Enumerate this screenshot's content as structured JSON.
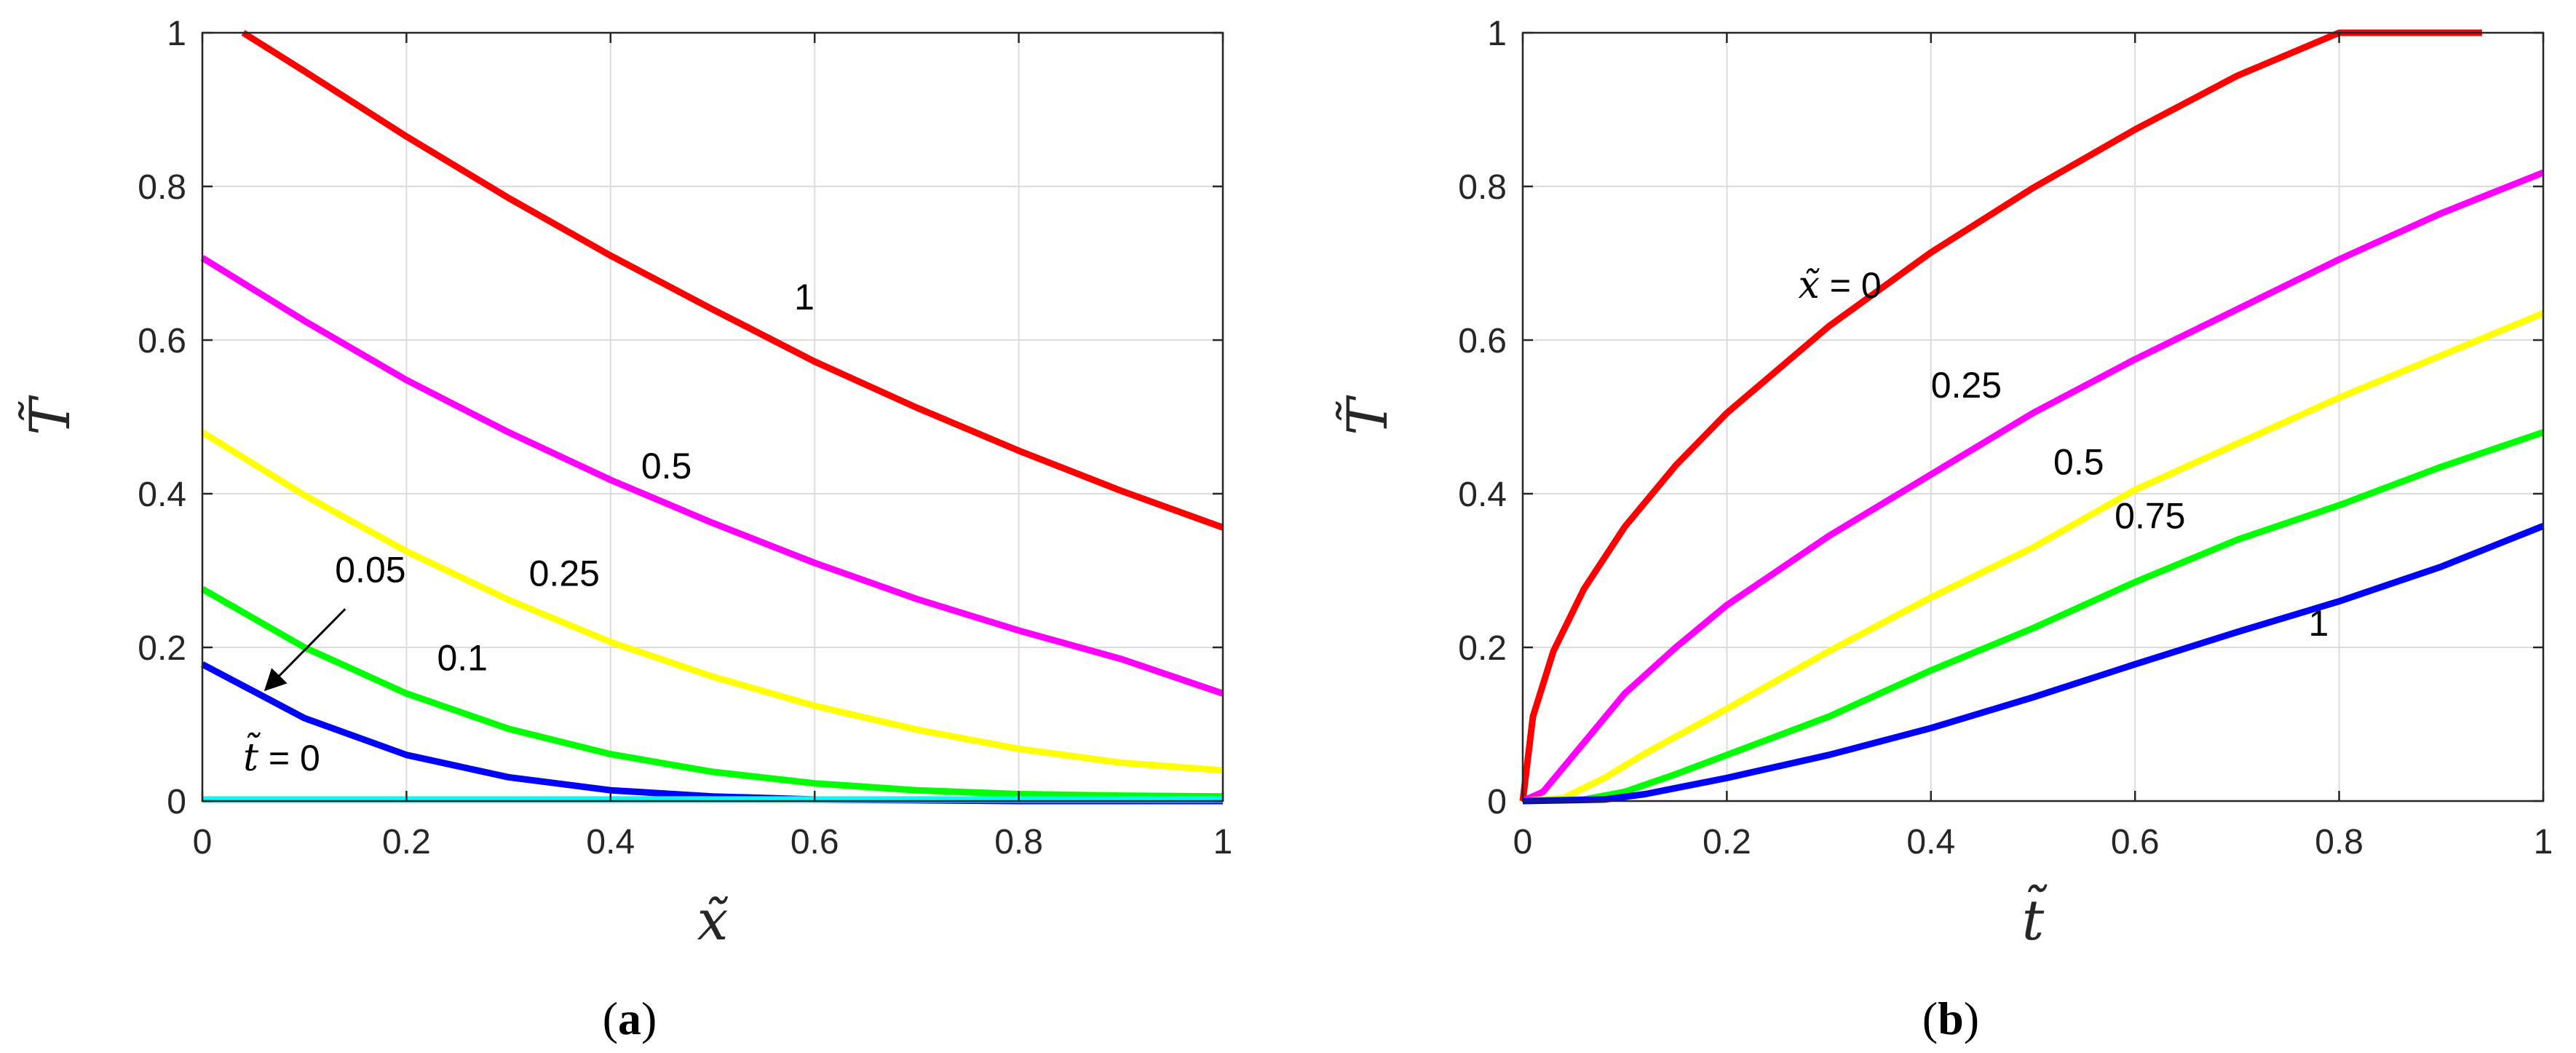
{
  "chart_data": [
    {
      "id": "a",
      "type": "line",
      "panel_label": "a",
      "xlabel": "x̃",
      "ylabel": "T̃",
      "xlim": [
        0,
        1
      ],
      "ylim": [
        0,
        1
      ],
      "xticks": [
        "0",
        "0.2",
        "0.4",
        "0.6",
        "0.8",
        "1"
      ],
      "yticks": [
        "0",
        "0.2",
        "0.4",
        "0.6",
        "0.8",
        "1"
      ],
      "grid": true,
      "series": [
        {
          "name": "1",
          "color": "#ff0000",
          "x": [
            0.04,
            0.1,
            0.2,
            0.3,
            0.4,
            0.5,
            0.6,
            0.7,
            0.8,
            0.9,
            1.0
          ],
          "y": [
            1.0,
            0.95,
            0.865,
            0.785,
            0.71,
            0.64,
            0.572,
            0.512,
            0.456,
            0.404,
            0.356
          ]
        },
        {
          "name": "0.5",
          "color": "#ff00ff",
          "x": [
            0,
            0.1,
            0.2,
            0.3,
            0.4,
            0.5,
            0.6,
            0.7,
            0.8,
            0.9,
            1.0
          ],
          "y": [
            0.707,
            0.625,
            0.548,
            0.48,
            0.418,
            0.362,
            0.31,
            0.263,
            0.222,
            0.185,
            0.14
          ]
        },
        {
          "name": "0.25",
          "color": "#ffff00",
          "x": [
            0,
            0.1,
            0.2,
            0.3,
            0.4,
            0.5,
            0.6,
            0.7,
            0.8,
            0.9,
            1.0
          ],
          "y": [
            0.48,
            0.398,
            0.325,
            0.262,
            0.207,
            0.162,
            0.124,
            0.093,
            0.068,
            0.05,
            0.04
          ]
        },
        {
          "name": "0.1",
          "color": "#00ff00",
          "x": [
            0,
            0.1,
            0.2,
            0.3,
            0.4,
            0.5,
            0.6,
            0.7,
            0.8,
            0.9,
            1.0
          ],
          "y": [
            0.276,
            0.2,
            0.14,
            0.094,
            0.061,
            0.038,
            0.023,
            0.014,
            0.009,
            0.007,
            0.006
          ]
        },
        {
          "name": "0.05",
          "color": "#0000ff",
          "x": [
            0,
            0.1,
            0.2,
            0.3,
            0.4,
            0.5,
            0.6,
            0.7,
            0.8,
            0.9,
            1.0
          ],
          "y": [
            0.178,
            0.108,
            0.06,
            0.031,
            0.014,
            0.006,
            0.002,
            0.001,
            0.0,
            0.0,
            0.0
          ]
        },
        {
          "name": "0",
          "color": "#00ffff",
          "x": [
            0,
            1.0
          ],
          "y": [
            0.002,
            0.002
          ]
        }
      ],
      "annotations": [
        {
          "text": "1",
          "x": 0.58,
          "y": 0.64
        },
        {
          "text": "0.5",
          "x": 0.43,
          "y": 0.42
        },
        {
          "text": "0.25",
          "x": 0.32,
          "y": 0.28
        },
        {
          "text": "0.1",
          "x": 0.23,
          "y": 0.17
        },
        {
          "text": "0.05",
          "x": 0.13,
          "y": 0.285
        },
        {
          "text": "= 0",
          "x": 0.04,
          "y": 0.04,
          "prefix": "t̃"
        }
      ],
      "arrow": {
        "from": [
          0.14,
          0.25
        ],
        "to": [
          0.062,
          0.145
        ]
      }
    },
    {
      "id": "b",
      "type": "line",
      "panel_label": "b",
      "xlabel": "t̃",
      "ylabel": "T̃",
      "xlim": [
        0,
        1
      ],
      "ylim": [
        0,
        1
      ],
      "xticks": [
        "0",
        "0.2",
        "0.4",
        "0.6",
        "0.8",
        "1"
      ],
      "yticks": [
        "0",
        "0.2",
        "0.4",
        "0.6",
        "0.8",
        "1"
      ],
      "grid": true,
      "series": [
        {
          "name": "0",
          "color": "#ff0000",
          "x": [
            0,
            0.01,
            0.03,
            0.06,
            0.1,
            0.15,
            0.2,
            0.3,
            0.4,
            0.5,
            0.6,
            0.7,
            0.8,
            0.9,
            0.94
          ],
          "y": [
            0,
            0.11,
            0.195,
            0.276,
            0.357,
            0.437,
            0.505,
            0.618,
            0.714,
            0.798,
            0.874,
            0.944,
            1.0,
            1.0,
            1.0
          ]
        },
        {
          "name": "0.25",
          "color": "#ff00ff",
          "x": [
            0,
            0.02,
            0.05,
            0.1,
            0.15,
            0.2,
            0.3,
            0.4,
            0.5,
            0.6,
            0.7,
            0.8,
            0.9,
            1.0
          ],
          "y": [
            0,
            0.012,
            0.06,
            0.14,
            0.2,
            0.255,
            0.345,
            0.425,
            0.505,
            0.575,
            0.64,
            0.705,
            0.765,
            0.818
          ]
        },
        {
          "name": "0.5",
          "color": "#ffff00",
          "x": [
            0,
            0.04,
            0.08,
            0.12,
            0.2,
            0.3,
            0.4,
            0.5,
            0.6,
            0.7,
            0.8,
            0.9,
            1.0
          ],
          "y": [
            0,
            0.004,
            0.03,
            0.062,
            0.12,
            0.195,
            0.265,
            0.33,
            0.405,
            0.465,
            0.525,
            0.58,
            0.635
          ]
        },
        {
          "name": "0.75",
          "color": "#00ff00",
          "x": [
            0,
            0.06,
            0.1,
            0.15,
            0.2,
            0.3,
            0.4,
            0.5,
            0.6,
            0.7,
            0.8,
            0.9,
            1.0
          ],
          "y": [
            0,
            0.002,
            0.012,
            0.035,
            0.06,
            0.11,
            0.17,
            0.225,
            0.285,
            0.34,
            0.385,
            0.435,
            0.48
          ]
        },
        {
          "name": "1",
          "color": "#0000ff",
          "x": [
            0,
            0.08,
            0.12,
            0.2,
            0.3,
            0.4,
            0.5,
            0.6,
            0.7,
            0.8,
            0.9,
            1.0
          ],
          "y": [
            0,
            0.002,
            0.009,
            0.03,
            0.06,
            0.095,
            0.135,
            0.178,
            0.22,
            0.26,
            0.305,
            0.358
          ]
        }
      ],
      "annotations": [
        {
          "text": "= 0",
          "x": 0.27,
          "y": 0.655,
          "prefix": "x̃"
        },
        {
          "text": "0.25",
          "x": 0.4,
          "y": 0.525
        },
        {
          "text": "0.5",
          "x": 0.52,
          "y": 0.425
        },
        {
          "text": "0.75",
          "x": 0.58,
          "y": 0.355
        },
        {
          "text": "1",
          "x": 0.77,
          "y": 0.215
        }
      ]
    }
  ]
}
